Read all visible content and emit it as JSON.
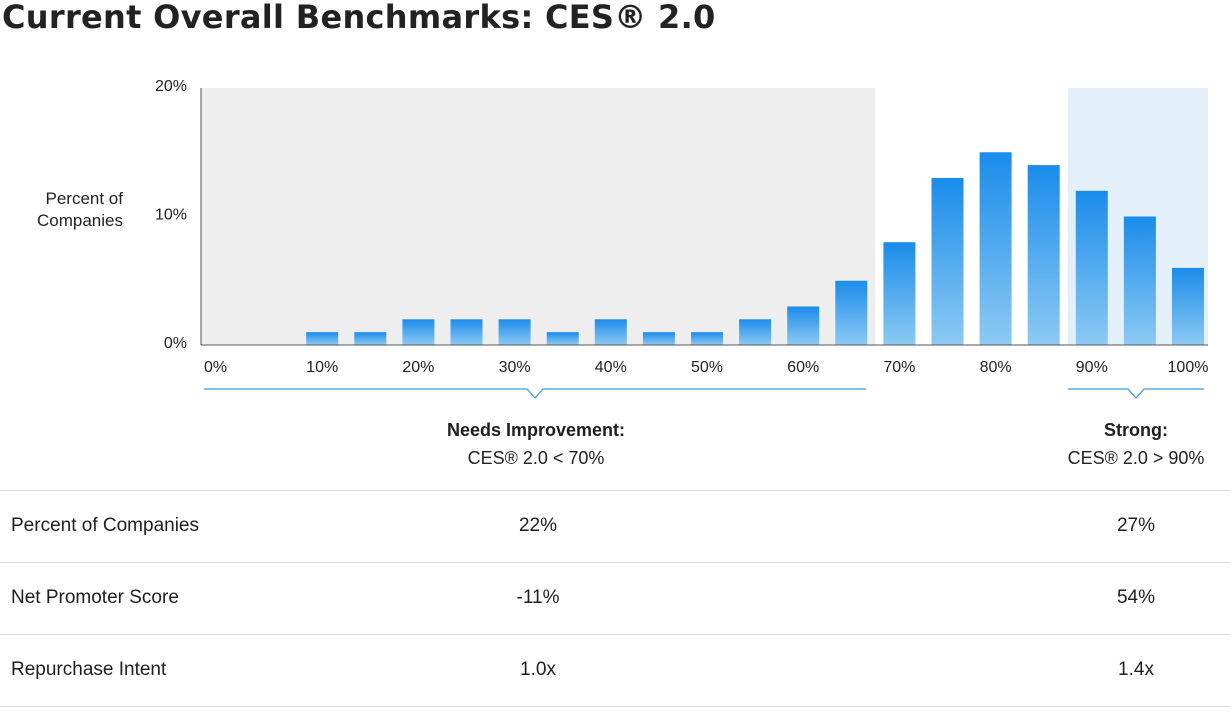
{
  "title": "Current Overall Benchmarks: CES® 2.0",
  "colors": {
    "bar_top": "#1a8ceb",
    "bar_bottom": "#8ccaf3",
    "needs_zone_bg": "#eeeeee",
    "strong_zone_bg": "#e3f0fa",
    "bracket": "#3a9be0"
  },
  "chart_data": {
    "type": "bar",
    "ylabel": "Percent of\nCompanies",
    "y_ticks": [
      "0%",
      "10%",
      "20%"
    ],
    "ylim": [
      0,
      20
    ],
    "x_tick_labels": [
      "0%",
      "10%",
      "20%",
      "30%",
      "40%",
      "50%",
      "60%",
      "70%",
      "80%",
      "90%",
      "100%"
    ],
    "categories": [
      "0%",
      "5%",
      "10%",
      "15%",
      "20%",
      "25%",
      "30%",
      "35%",
      "40%",
      "45%",
      "50%",
      "55%",
      "60%",
      "65%",
      "70%",
      "75%",
      "80%",
      "85%",
      "90%",
      "95%",
      "100%"
    ],
    "values": [
      0,
      0,
      1,
      1,
      2,
      2,
      2,
      1,
      2,
      1,
      1,
      2,
      3,
      5,
      8,
      13,
      15,
      14,
      12,
      10,
      6
    ],
    "zones": [
      {
        "name": "Needs Improvement:",
        "rule": "CES® 2.0 < 70%",
        "from": 0,
        "to": 70
      },
      {
        "name": "Strong:",
        "rule": "CES® 2.0 > 90%",
        "from": 90,
        "to": 100
      }
    ]
  },
  "table": {
    "rows": [
      {
        "metric": "Percent of Companies",
        "needs": "22%",
        "strong": "27%"
      },
      {
        "metric": "Net Promoter Score",
        "needs": "-11%",
        "strong": "54%"
      },
      {
        "metric": "Repurchase Intent",
        "needs": "1.0x",
        "strong": "1.4x"
      }
    ]
  }
}
